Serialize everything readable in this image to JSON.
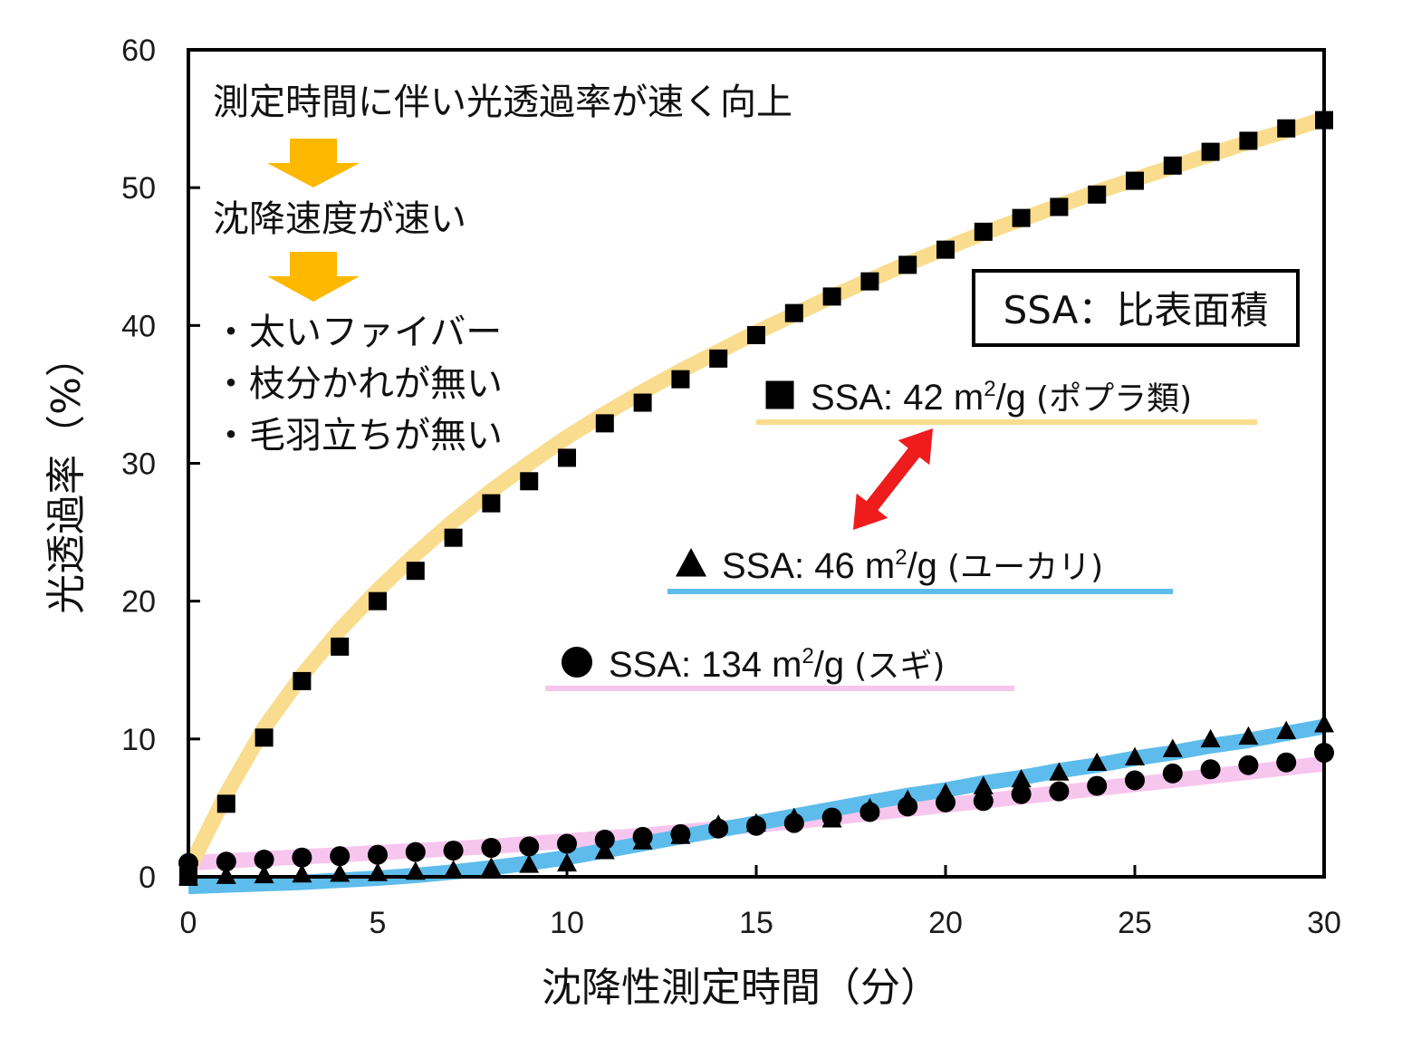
{
  "chart_data": {
    "type": "scatter",
    "title": "",
    "xlabel": "沈降性測定時間（分）",
    "ylabel": "光透過率（%）",
    "xlim": [
      0,
      30
    ],
    "ylim": [
      0,
      60
    ],
    "xticks": [
      "0",
      "5",
      "10",
      "15",
      "20",
      "25",
      "30"
    ],
    "yticks": [
      "0",
      "10",
      "20",
      "30",
      "40",
      "50",
      "60"
    ],
    "grid": false,
    "x": [
      0,
      1,
      2,
      3,
      4,
      5,
      6,
      7,
      8,
      9,
      10,
      11,
      12,
      13,
      14,
      15,
      16,
      17,
      18,
      19,
      20,
      21,
      22,
      23,
      24,
      25,
      26,
      27,
      28,
      29,
      30
    ],
    "series": [
      {
        "name": "SSA: 42 m²/g (ポプラ類)",
        "marker": "square",
        "trend_color": "#F9DC8E",
        "values": [
          0.0,
          5.3,
          10.1,
          14.2,
          16.7,
          20.0,
          22.2,
          24.6,
          27.1,
          28.7,
          30.4,
          32.9,
          34.4,
          36.1,
          37.6,
          39.3,
          40.9,
          42.1,
          43.2,
          44.4,
          45.5,
          46.8,
          47.8,
          48.6,
          49.5,
          50.5,
          51.6,
          52.6,
          53.4,
          54.3,
          54.9
        ],
        "trend": [
          0.5,
          6.0,
          10.8,
          14.6,
          17.9,
          20.8,
          23.4,
          25.8,
          28.0,
          30.0,
          31.9,
          33.6,
          35.2,
          36.7,
          38.1,
          39.5,
          40.8,
          42.1,
          43.3,
          44.5,
          45.6,
          46.7,
          47.7,
          48.7,
          49.7,
          50.6,
          51.5,
          52.4,
          53.3,
          54.1,
          55.0
        ]
      },
      {
        "name": "SSA: 46 m²/g (ユーカリ)",
        "marker": "triangle",
        "trend_color": "#5DBCEB",
        "values": [
          0.0,
          0.1,
          0.15,
          0.2,
          0.25,
          0.3,
          0.4,
          0.5,
          0.7,
          0.9,
          1.0,
          1.9,
          2.6,
          3.0,
          3.8,
          3.9,
          4.3,
          4.2,
          5.0,
          5.6,
          6.1,
          6.6,
          7.1,
          7.6,
          8.3,
          8.7,
          9.3,
          10.0,
          10.2,
          10.6,
          11.1
        ],
        "trend": [
          -0.7,
          -0.6,
          -0.5,
          -0.4,
          -0.25,
          -0.1,
          0.1,
          0.35,
          0.65,
          1.0,
          1.4,
          1.9,
          2.4,
          2.9,
          3.4,
          3.9,
          4.4,
          4.9,
          5.4,
          5.9,
          6.3,
          6.8,
          7.2,
          7.7,
          8.1,
          8.6,
          9.0,
          9.5,
          9.9,
          10.4,
          10.9
        ]
      },
      {
        "name": "SSA: 134 m²/g (スギ)",
        "marker": "circle",
        "trend_color": "#F7C6EE",
        "values": [
          1.0,
          1.1,
          1.25,
          1.4,
          1.5,
          1.6,
          1.8,
          1.9,
          2.1,
          2.2,
          2.4,
          2.7,
          2.9,
          3.1,
          3.5,
          3.7,
          3.9,
          4.3,
          4.7,
          5.1,
          5.4,
          5.5,
          6.0,
          6.2,
          6.6,
          7.0,
          7.5,
          7.8,
          8.1,
          8.3,
          9.0
        ],
        "trend": [
          1.0,
          1.15,
          1.3,
          1.45,
          1.6,
          1.75,
          1.9,
          2.05,
          2.2,
          2.4,
          2.6,
          2.8,
          3.0,
          3.25,
          3.5,
          3.75,
          4.0,
          4.3,
          4.6,
          4.9,
          5.2,
          5.5,
          5.8,
          6.1,
          6.4,
          6.7,
          7.0,
          7.3,
          7.6,
          7.9,
          8.2
        ]
      }
    ],
    "legend": [
      {
        "marker": "square",
        "text": "SSA: 42 m",
        "sup": "2",
        "unit": "/g",
        "species": "(ポプラ類)",
        "underline_color": "#F9DC8E"
      },
      {
        "marker": "triangle",
        "text": "SSA: 46 m",
        "sup": "2",
        "unit": "/g",
        "species": "(ユーカリ)",
        "underline_color": "#5DBCEB"
      },
      {
        "marker": "circle",
        "text": "SSA: 134 m",
        "sup": "2",
        "unit": "/g",
        "species": "(スギ)",
        "underline_color": "#F7C6EE"
      }
    ],
    "legend_placement": "center-right",
    "annotations": {
      "definition_box": "SSA：比表面積",
      "notes": [
        "測定時間に伴い光透過率が速く向上",
        "沈降速度が速い",
        "・太いファイバー",
        "・枝分かれが無い",
        "・毛羽立ちが無い"
      ],
      "arrow_color": "#FFB800",
      "comparison_arrow_color": "#EE1C1C"
    }
  }
}
